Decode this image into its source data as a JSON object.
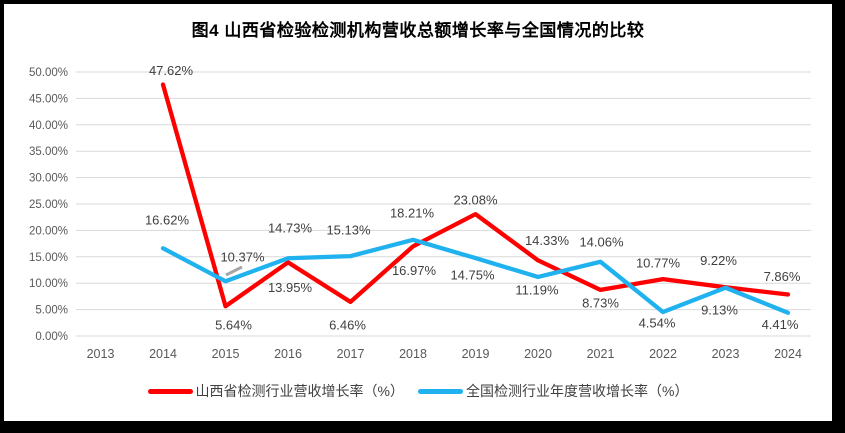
{
  "title": "图4  山西省检验检测机构营收总额增长率与全国情况的比较",
  "frame": {
    "border_color": "#000000",
    "background": "#FFFFFF"
  },
  "chart_data": {
    "type": "line",
    "title": "图4  山西省检验检测机构营收总额增长率与全国情况的比较",
    "categories": [
      "2013",
      "2014",
      "2015",
      "2016",
      "2017",
      "2018",
      "2019",
      "2020",
      "2021",
      "2022",
      "2023",
      "2024"
    ],
    "series": [
      {
        "name": "山西省检测行业营收增长率（%）",
        "color": "#FF0000",
        "values": [
          null,
          47.62,
          5.64,
          13.95,
          6.46,
          16.97,
          23.08,
          14.33,
          8.73,
          10.77,
          9.22,
          7.86
        ],
        "label_dx": [
          null,
          8,
          8,
          2,
          -3,
          1,
          0,
          9,
          0,
          -5,
          -7,
          -6
        ],
        "label_dy": [
          null,
          -14,
          19,
          25,
          23,
          24,
          -14,
          -20,
          13,
          -16,
          -27,
          -18
        ]
      },
      {
        "name": "全国检测行业年度营收增长率（%）",
        "color": "#1FB2EE",
        "values": [
          null,
          16.62,
          10.37,
          14.73,
          15.13,
          18.21,
          14.75,
          11.19,
          14.06,
          4.54,
          9.13,
          4.41
        ],
        "label_dx": [
          null,
          4,
          17,
          2,
          -2,
          -1,
          -3,
          -1,
          1,
          -6,
          -6,
          -8
        ],
        "label_dy": [
          null,
          -28,
          -24,
          -30,
          -26,
          -27,
          17,
          13,
          -20,
          11,
          22,
          12
        ]
      }
    ],
    "y_ticks": [
      "50.00%",
      "45.00%",
      "40.00%",
      "35.00%",
      "30.00%",
      "25.00%",
      "20.00%",
      "15.00%",
      "10.00%",
      "5.00%",
      "0.00%"
    ],
    "ylim": [
      0,
      50
    ],
    "y_tick_interval": 5,
    "grid": true,
    "gridline_color": "#D9D9D9",
    "axis_label_color": "#595959",
    "data_label_color": "#404040",
    "data_labels": true,
    "legend_position": "bottom",
    "artifact": {
      "type": "short-gray-segment",
      "near": "2015 national data point",
      "color": "#A6A6A6"
    }
  }
}
